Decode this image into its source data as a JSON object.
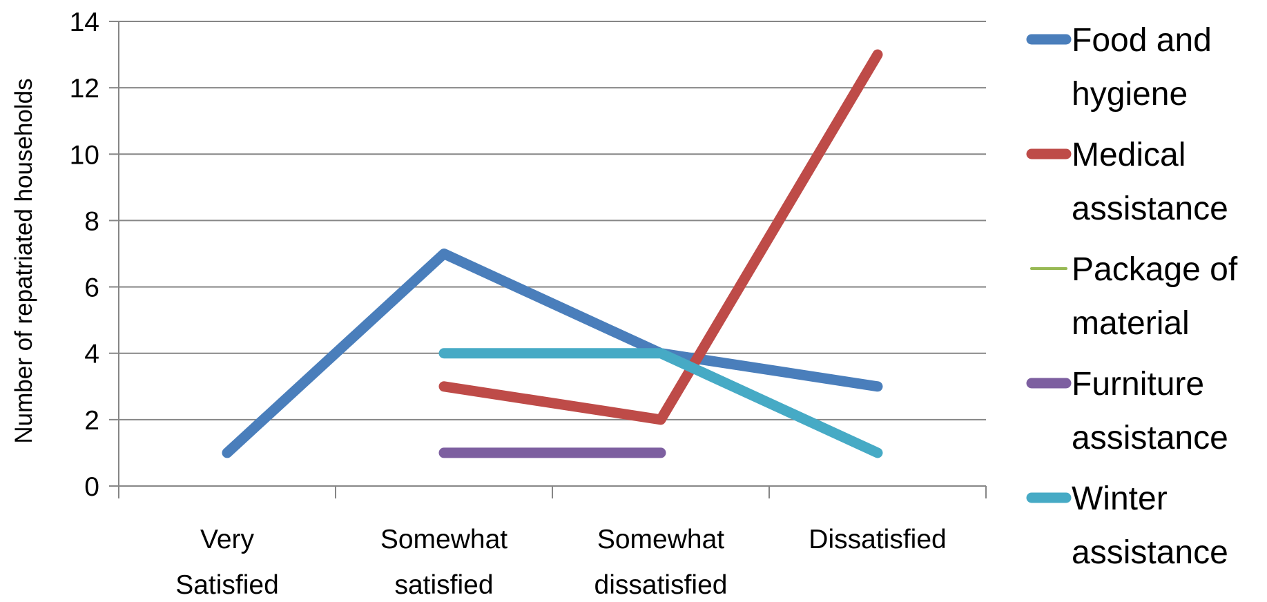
{
  "chart_data": {
    "type": "line",
    "title": "",
    "xlabel": "",
    "ylabel": "Number of repatriated households",
    "ylim": [
      0,
      14
    ],
    "yticks": [
      "0",
      "2",
      "4",
      "6",
      "8",
      "10",
      "12",
      "14"
    ],
    "grid": true,
    "legend": "right",
    "categories": [
      [
        "Very",
        "Satisfied"
      ],
      [
        "Somewhat",
        "satisfied"
      ],
      [
        "Somewhat",
        "dissatisfied"
      ],
      [
        "Dissatisfied"
      ]
    ],
    "series": [
      {
        "name": [
          "Food and",
          "hygiene"
        ],
        "color": "#4a7ebb",
        "values": [
          1,
          7,
          4,
          3
        ]
      },
      {
        "name": [
          "Medical",
          "assistance"
        ],
        "color": "#be4b48",
        "values": [
          null,
          3,
          2,
          13
        ]
      },
      {
        "name": [
          "Package of",
          "material"
        ],
        "color": "#98b954",
        "values": [
          null,
          null,
          null,
          null
        ]
      },
      {
        "name": [
          "Furniture",
          "assistance"
        ],
        "color": "#7d5fa0",
        "values": [
          null,
          1,
          1,
          null
        ]
      },
      {
        "name": [
          "Winter",
          "assistance"
        ],
        "color": "#46aac5",
        "values": [
          null,
          4,
          4,
          1
        ]
      }
    ]
  }
}
